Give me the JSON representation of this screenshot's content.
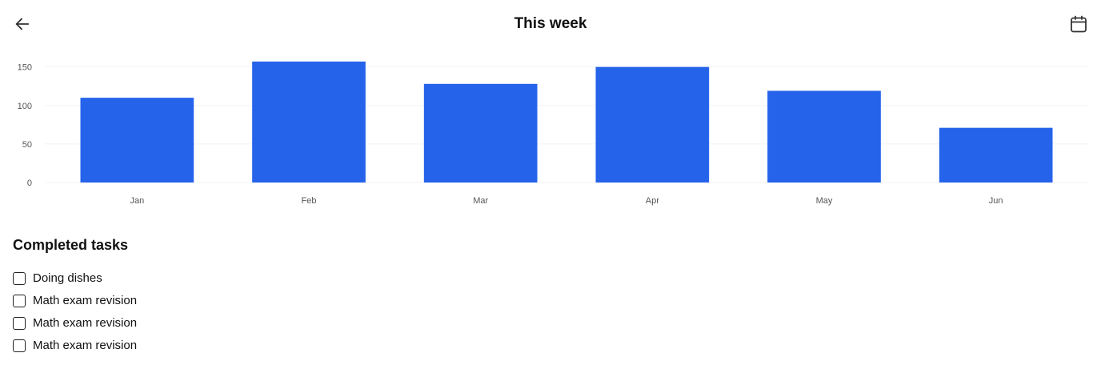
{
  "header": {
    "title": "This week",
    "back_icon": "arrow-left-icon",
    "calendar_icon": "calendar-icon"
  },
  "chart_data": {
    "type": "bar",
    "categories": [
      "Jan",
      "Feb",
      "Mar",
      "Apr",
      "May",
      "Jun"
    ],
    "values": [
      110,
      157,
      128,
      150,
      119,
      71
    ],
    "yticks": [
      0,
      50,
      100,
      150
    ],
    "ylim": [
      0,
      160
    ],
    "grid": true,
    "bar_color": "#2563EB"
  },
  "tasks": {
    "title": "Completed tasks",
    "items": [
      {
        "label": "Doing dishes"
      },
      {
        "label": "Math exam revision"
      },
      {
        "label": "Math exam revision"
      },
      {
        "label": "Math exam revision"
      }
    ]
  },
  "colors": {
    "accent": "#2563EB",
    "text": "#111111",
    "grid": "#F2F2F2"
  }
}
